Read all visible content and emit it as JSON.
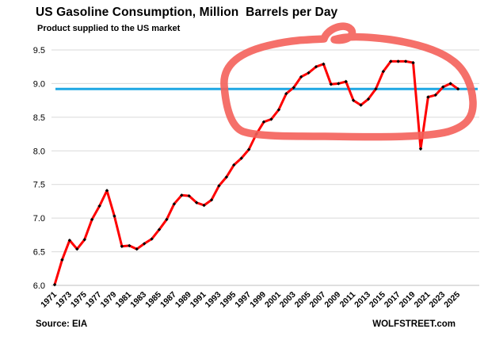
{
  "header": {
    "title": "US Gasoline Consumption, Million  Barrels per Day",
    "subtitle": "Product supplied to the US market"
  },
  "footer": {
    "source": "Source: EIA",
    "branding": "WOLFSTREET.com"
  },
  "colors": {
    "series_line": "#fe0000",
    "marker": "#000000",
    "reference_line": "#1ea7e3",
    "annotation": "#f4615a",
    "gridline": "#d9d9d9",
    "axis_line": "#bfbfbf"
  },
  "chart_data": {
    "type": "line",
    "title": "US Gasoline Consumption, Million  Barrels per Day",
    "subtitle": "Product supplied to the US market",
    "xlabel": "",
    "ylabel": "",
    "ylim": [
      6.0,
      9.5
    ],
    "grid": true,
    "legend": "none",
    "x": [
      1971,
      1972,
      1973,
      1974,
      1975,
      1976,
      1977,
      1978,
      1979,
      1980,
      1981,
      1982,
      1983,
      1984,
      1985,
      1986,
      1987,
      1988,
      1989,
      1990,
      1991,
      1992,
      1993,
      1994,
      1995,
      1996,
      1997,
      1998,
      1999,
      2000,
      2001,
      2002,
      2003,
      2004,
      2005,
      2006,
      2007,
      2008,
      2009,
      2010,
      2011,
      2012,
      2013,
      2014,
      2015,
      2016,
      2017,
      2018,
      2019,
      2020,
      2021,
      2022,
      2023,
      2024,
      2025
    ],
    "series": [
      {
        "name": "US gasoline consumption, million barrels per day",
        "values": [
          6.01,
          6.38,
          6.67,
          6.54,
          6.68,
          6.98,
          7.18,
          7.41,
          7.03,
          6.58,
          6.59,
          6.54,
          6.62,
          6.69,
          6.83,
          6.98,
          7.21,
          7.34,
          7.33,
          7.23,
          7.19,
          7.27,
          7.48,
          7.61,
          7.79,
          7.89,
          8.02,
          8.25,
          8.43,
          8.47,
          8.61,
          8.85,
          8.94,
          9.1,
          9.16,
          9.25,
          9.29,
          8.99,
          9.0,
          9.03,
          8.75,
          8.68,
          8.77,
          8.92,
          9.18,
          9.33,
          9.33,
          9.33,
          9.31,
          8.03,
          8.8,
          8.83,
          8.95,
          9.0,
          8.92
        ]
      }
    ],
    "reference_line": {
      "value": 8.92,
      "orientation": "horizontal"
    },
    "yticks": [
      "6.0",
      "6.5",
      "7.0",
      "7.5",
      "8.0",
      "8.5",
      "9.0",
      "9.5"
    ],
    "ytick_values": [
      6.0,
      6.5,
      7.0,
      7.5,
      8.0,
      8.5,
      9.0,
      9.5
    ],
    "xtick_labels": [
      "1971",
      "1973",
      "1975",
      "1977",
      "1979",
      "1981",
      "1983",
      "1985",
      "1987",
      "1989",
      "1991",
      "1993",
      "1995",
      "1997",
      "1999",
      "2001",
      "2003",
      "2005",
      "2007",
      "2009",
      "2011",
      "2013",
      "2015",
      "2017",
      "2019",
      "2021",
      "2023",
      "2025"
    ],
    "annotation": {
      "type": "hand-drawn-ellipse-with-curl",
      "description": "thick hand-drawn red oval circling the consumption plateau from the mid-1990s through 2025",
      "year_range": [
        1994,
        2025
      ]
    }
  }
}
